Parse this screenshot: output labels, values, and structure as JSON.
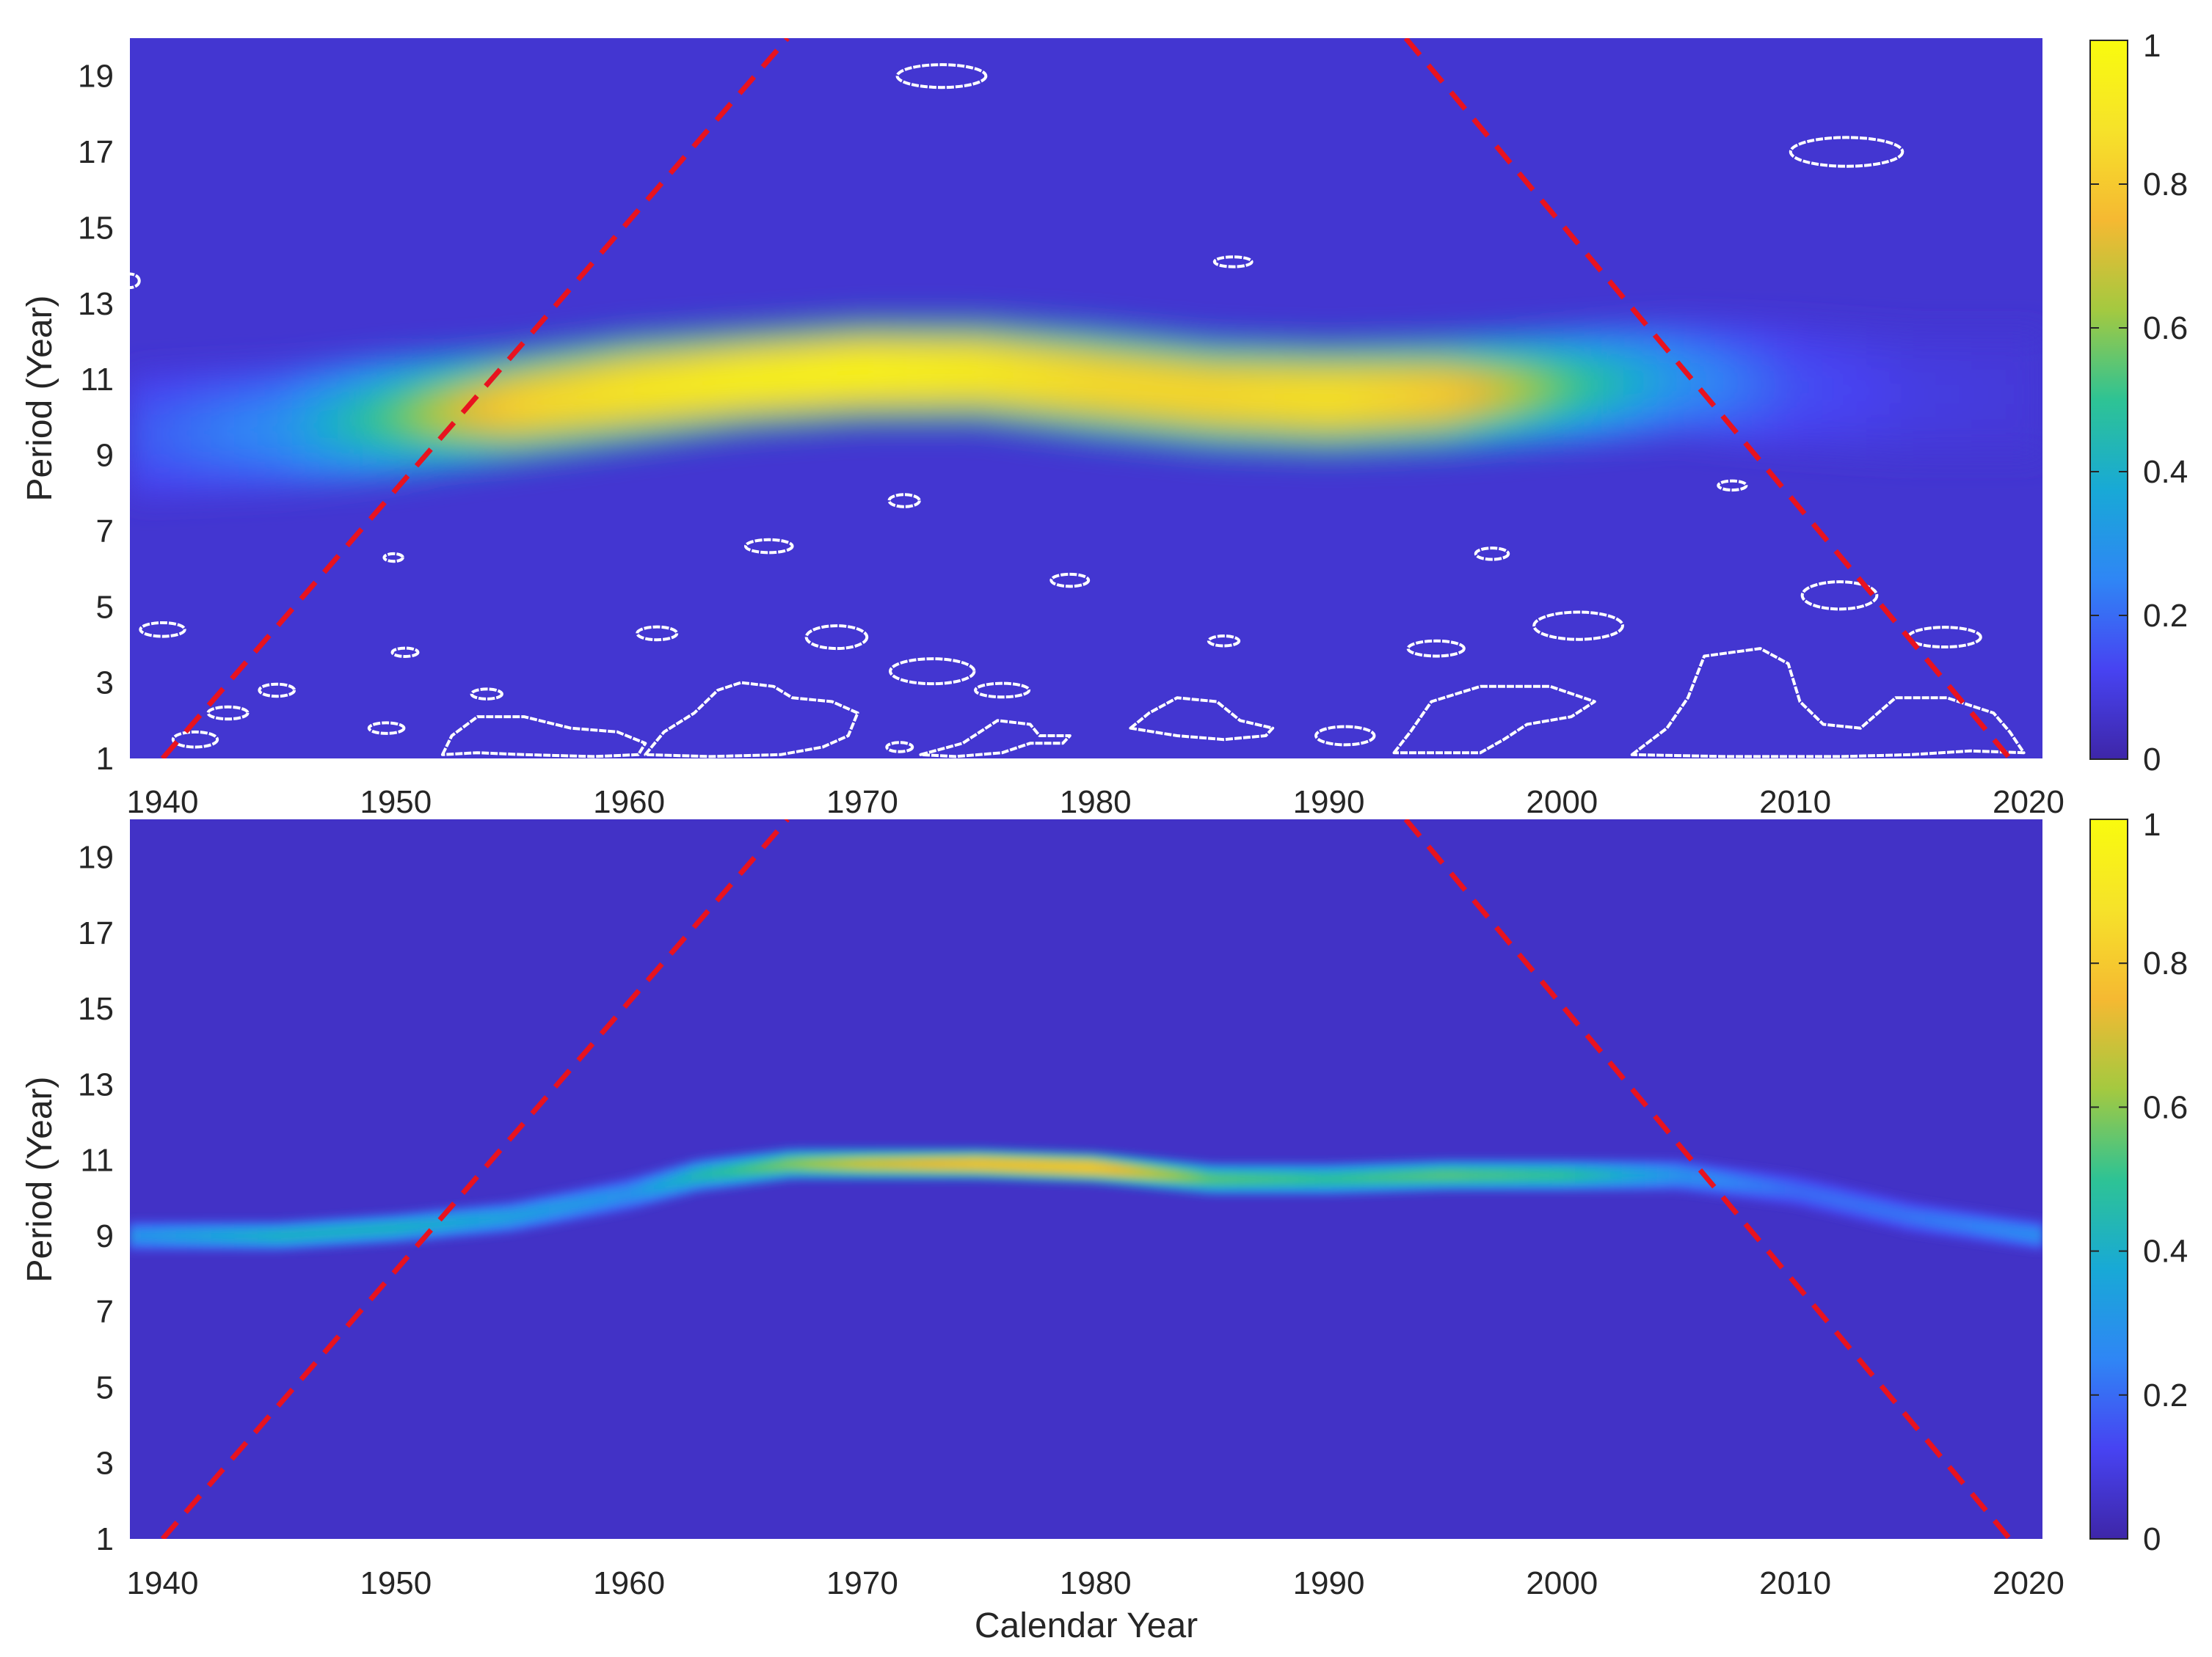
{
  "colors": {
    "colormap": [
      "#3e26a8",
      "#4743f2",
      "#2f86f5",
      "#18a9d6",
      "#2ec394",
      "#a4c940",
      "#f5b932",
      "#f6e22a",
      "#f9fb0e"
    ],
    "coi_line": "#e8131f",
    "contour": "#ffffff",
    "axes_text": "#262626"
  },
  "figure": {
    "xlabel": "Calendar Year"
  },
  "colorbar": {
    "ticks": [
      0,
      0.2,
      0.4,
      0.6,
      0.8,
      1
    ],
    "tick_labels": [
      "0",
      "0.2",
      "0.4",
      "0.6",
      "0.8",
      "1"
    ]
  },
  "chart_data": [
    {
      "type": "heatmap",
      "title": "",
      "xlabel": "",
      "ylabel": "Period (Year)",
      "xlim": [
        1938.6,
        2020.6
      ],
      "ylim": [
        1,
        20
      ],
      "x_ticks": [
        1940,
        1950,
        1960,
        1970,
        1980,
        1990,
        2000,
        2010,
        2020
      ],
      "x_tick_labels": [
        "1940",
        "1950",
        "1960",
        "1970",
        "1980",
        "1990",
        "2000",
        "2010",
        "2020"
      ],
      "y_ticks": [
        1,
        3,
        5,
        7,
        9,
        11,
        13,
        15,
        17,
        19
      ],
      "y_tick_labels": [
        "1",
        "3",
        "5",
        "7",
        "9",
        "11",
        "13",
        "15",
        "17",
        "19"
      ],
      "clim": [
        0,
        1
      ],
      "ridge": {
        "years": [
          1938.6,
          1945,
          1950,
          1955,
          1960,
          1965,
          1970,
          1975,
          1980,
          1985,
          1990,
          1995,
          2000,
          2005,
          2010,
          2015,
          2020.6
        ],
        "period": [
          9.5,
          9.7,
          10.0,
          10.3,
          10.7,
          11.0,
          11.2,
          11.2,
          10.9,
          10.6,
          10.5,
          10.6,
          10.8,
          11.0,
          10.8,
          10.6,
          10.6
        ],
        "power": [
          0.16,
          0.28,
          0.55,
          0.84,
          0.92,
          0.97,
          0.99,
          0.95,
          0.87,
          0.86,
          0.9,
          0.82,
          0.55,
          0.3,
          0.15,
          0.1,
          0.08
        ],
        "width": [
          1.6,
          1.6,
          1.6,
          1.5,
          1.5,
          1.4,
          1.4,
          1.4,
          1.5,
          1.5,
          1.5,
          1.5,
          1.5,
          1.5,
          1.6,
          1.6,
          1.6
        ]
      },
      "background_power": 0.07,
      "coi": {
        "left": [
          [
            1940,
            1
          ],
          [
            1966.8,
            20
          ]
        ],
        "right": [
          [
            1993.3,
            20
          ],
          [
            2019.2,
            1
          ]
        ]
      },
      "contours": [
        {
          "shape": "ellipse",
          "cx": 1973.4,
          "cy": 19.0,
          "rx": 1.9,
          "ry": 0.3
        },
        {
          "shape": "ellipse",
          "cx": 2012.2,
          "cy": 17.0,
          "rx": 2.4,
          "ry": 0.38
        },
        {
          "shape": "ellipse",
          "cx": 1985.9,
          "cy": 14.1,
          "rx": 0.8,
          "ry": 0.13
        },
        {
          "shape": "ellipse",
          "cx": 1938.6,
          "cy": 13.6,
          "rx": 0.4,
          "ry": 0.18
        },
        {
          "shape": "ellipse",
          "cx": 1971.8,
          "cy": 7.8,
          "rx": 0.65,
          "ry": 0.16
        },
        {
          "shape": "ellipse",
          "cx": 2007.3,
          "cy": 8.2,
          "rx": 0.6,
          "ry": 0.12
        },
        {
          "shape": "ellipse",
          "cx": 1966.0,
          "cy": 6.6,
          "rx": 1.0,
          "ry": 0.17
        },
        {
          "shape": "ellipse",
          "cx": 1997.0,
          "cy": 6.4,
          "rx": 0.7,
          "ry": 0.15
        },
        {
          "shape": "ellipse",
          "cx": 1949.9,
          "cy": 6.3,
          "rx": 0.4,
          "ry": 0.1
        },
        {
          "shape": "ellipse",
          "cx": 1978.9,
          "cy": 5.7,
          "rx": 0.8,
          "ry": 0.16
        },
        {
          "shape": "ellipse",
          "cx": 2011.9,
          "cy": 5.3,
          "rx": 1.6,
          "ry": 0.36
        },
        {
          "shape": "ellipse",
          "cx": 2000.7,
          "cy": 4.5,
          "rx": 1.9,
          "ry": 0.36
        },
        {
          "shape": "ellipse",
          "cx": 1940.0,
          "cy": 4.4,
          "rx": 0.95,
          "ry": 0.18
        },
        {
          "shape": "ellipse",
          "cx": 1961.2,
          "cy": 4.3,
          "rx": 0.85,
          "ry": 0.17
        },
        {
          "shape": "ellipse",
          "cx": 1968.9,
          "cy": 4.2,
          "rx": 1.3,
          "ry": 0.3
        },
        {
          "shape": "ellipse",
          "cx": 2016.4,
          "cy": 4.2,
          "rx": 1.55,
          "ry": 0.26
        },
        {
          "shape": "ellipse",
          "cx": 1985.5,
          "cy": 4.1,
          "rx": 0.65,
          "ry": 0.13
        },
        {
          "shape": "ellipse",
          "cx": 1994.6,
          "cy": 3.9,
          "rx": 1.2,
          "ry": 0.2
        },
        {
          "shape": "ellipse",
          "cx": 1950.4,
          "cy": 3.8,
          "rx": 0.55,
          "ry": 0.11
        },
        {
          "shape": "ellipse",
          "cx": 1973.0,
          "cy": 3.3,
          "rx": 1.8,
          "ry": 0.33
        },
        {
          "shape": "ellipse",
          "cx": 1944.9,
          "cy": 2.8,
          "rx": 0.75,
          "ry": 0.16
        },
        {
          "shape": "ellipse",
          "cx": 1976.0,
          "cy": 2.8,
          "rx": 1.15,
          "ry": 0.18
        },
        {
          "shape": "ellipse",
          "cx": 1953.9,
          "cy": 2.7,
          "rx": 0.65,
          "ry": 0.13
        },
        {
          "shape": "ellipse",
          "cx": 1942.8,
          "cy": 2.2,
          "rx": 0.85,
          "ry": 0.16
        },
        {
          "shape": "ellipse",
          "cx": 1949.6,
          "cy": 1.8,
          "rx": 0.75,
          "ry": 0.14
        },
        {
          "shape": "ellipse",
          "cx": 1971.6,
          "cy": 1.3,
          "rx": 0.55,
          "ry": 0.12
        },
        {
          "shape": "ellipse",
          "cx": 1941.4,
          "cy": 1.5,
          "rx": 0.95,
          "ry": 0.2
        },
        {
          "shape": "ellipse",
          "cx": 1990.7,
          "cy": 1.6,
          "rx": 1.25,
          "ry": 0.24
        },
        {
          "shape": "poly",
          "points": [
            [
              1952,
              1.1
            ],
            [
              1952.4,
              1.6
            ],
            [
              1953.5,
              2.1
            ],
            [
              1955.5,
              2.1
            ],
            [
              1957.5,
              1.8
            ],
            [
              1959.5,
              1.7
            ],
            [
              1960.7,
              1.4
            ],
            [
              1960.4,
              1.1
            ],
            [
              1958.5,
              1.05
            ],
            [
              1955.5,
              1.1
            ],
            [
              1953.5,
              1.15
            ]
          ]
        },
        {
          "shape": "poly",
          "points": [
            [
              1960.7,
              1.1
            ],
            [
              1961.5,
              1.7
            ],
            [
              1962.8,
              2.2
            ],
            [
              1963.8,
              2.8
            ],
            [
              1964.8,
              3.0
            ],
            [
              1966.2,
              2.9
            ],
            [
              1967,
              2.6
            ],
            [
              1968.7,
              2.5
            ],
            [
              1969.8,
              2.2
            ],
            [
              1969.4,
              1.6
            ],
            [
              1968.3,
              1.3
            ],
            [
              1966.5,
              1.1
            ],
            [
              1963.5,
              1.05
            ]
          ]
        },
        {
          "shape": "poly",
          "points": [
            [
              1972.5,
              1.1
            ],
            [
              1974.3,
              1.4
            ],
            [
              1975.8,
              2.0
            ],
            [
              1977.2,
              1.9
            ],
            [
              1977.6,
              1.6
            ],
            [
              1978.9,
              1.6
            ],
            [
              1978.6,
              1.4
            ],
            [
              1977.2,
              1.4
            ],
            [
              1976,
              1.15
            ],
            [
              1974,
              1.05
            ]
          ]
        },
        {
          "shape": "poly",
          "points": [
            [
              1981.5,
              1.8
            ],
            [
              1982.3,
              2.2
            ],
            [
              1983.5,
              2.6
            ],
            [
              1985.2,
              2.5
            ],
            [
              1986.2,
              2.0
            ],
            [
              1987.6,
              1.8
            ],
            [
              1987.3,
              1.6
            ],
            [
              1985.5,
              1.5
            ],
            [
              1983.5,
              1.6
            ]
          ]
        },
        {
          "shape": "poly",
          "points": [
            [
              1992.8,
              1.15
            ],
            [
              1993.5,
              1.7
            ],
            [
              1994.4,
              2.5
            ],
            [
              1996.5,
              2.9
            ],
            [
              1999.5,
              2.9
            ],
            [
              2001.4,
              2.5
            ],
            [
              2000.4,
              2.1
            ],
            [
              1998.5,
              1.9
            ],
            [
              1997.5,
              1.5
            ],
            [
              1996.5,
              1.15
            ]
          ]
        },
        {
          "shape": "poly",
          "points": [
            [
              2003,
              1.1
            ],
            [
              2004.5,
              1.8
            ],
            [
              2005.4,
              2.6
            ],
            [
              2006.1,
              3.7
            ],
            [
              2008.5,
              3.9
            ],
            [
              2009.7,
              3.5
            ],
            [
              2010.2,
              2.5
            ],
            [
              2011.2,
              1.9
            ],
            [
              2012.8,
              1.8
            ],
            [
              2014.3,
              2.6
            ],
            [
              2016.5,
              2.6
            ],
            [
              2018.5,
              2.2
            ],
            [
              2019.2,
              1.7
            ],
            [
              2019.8,
              1.15
            ],
            [
              2017.5,
              1.2
            ],
            [
              2015,
              1.1
            ],
            [
              2012,
              1.05
            ],
            [
              2007,
              1.05
            ]
          ]
        }
      ]
    },
    {
      "type": "heatmap",
      "title": "",
      "xlabel": "Calendar Year",
      "ylabel": "Period (Year)",
      "xlim": [
        1938.6,
        2020.6
      ],
      "ylim": [
        1,
        20
      ],
      "x_ticks": [
        1940,
        1950,
        1960,
        1970,
        1980,
        1990,
        2000,
        2010,
        2020
      ],
      "x_tick_labels": [
        "1940",
        "1950",
        "1960",
        "1970",
        "1980",
        "1990",
        "2000",
        "2010",
        "2020"
      ],
      "y_ticks": [
        1,
        3,
        5,
        7,
        9,
        11,
        13,
        15,
        17,
        19
      ],
      "y_tick_labels": [
        "1",
        "3",
        "5",
        "7",
        "9",
        "11",
        "13",
        "15",
        "17",
        "19"
      ],
      "clim": [
        0,
        1
      ],
      "ridge": {
        "years": [
          1938.6,
          1945,
          1950,
          1955,
          1960,
          1963,
          1967,
          1970,
          1975,
          1980,
          1985,
          1990,
          1995,
          2000,
          2005,
          2010,
          2015,
          2020.6
        ],
        "period": [
          9.0,
          9.0,
          9.2,
          9.5,
          10.1,
          10.6,
          10.9,
          10.9,
          10.9,
          10.8,
          10.5,
          10.5,
          10.6,
          10.6,
          10.6,
          10.2,
          9.5,
          9.0
        ],
        "power": [
          0.3,
          0.42,
          0.42,
          0.35,
          0.3,
          0.45,
          0.6,
          0.7,
          0.78,
          0.8,
          0.55,
          0.5,
          0.55,
          0.5,
          0.3,
          0.2,
          0.22,
          0.28
        ],
        "width": [
          0.38,
          0.38,
          0.38,
          0.4,
          0.42,
          0.42,
          0.4,
          0.4,
          0.4,
          0.4,
          0.4,
          0.4,
          0.4,
          0.4,
          0.4,
          0.4,
          0.4,
          0.38
        ]
      },
      "background_power": 0.05,
      "coi": {
        "left": [
          [
            1940,
            1
          ],
          [
            1966.8,
            20
          ]
        ],
        "right": [
          [
            1993.3,
            20
          ],
          [
            2019.2,
            1
          ]
        ]
      },
      "contours": []
    }
  ]
}
